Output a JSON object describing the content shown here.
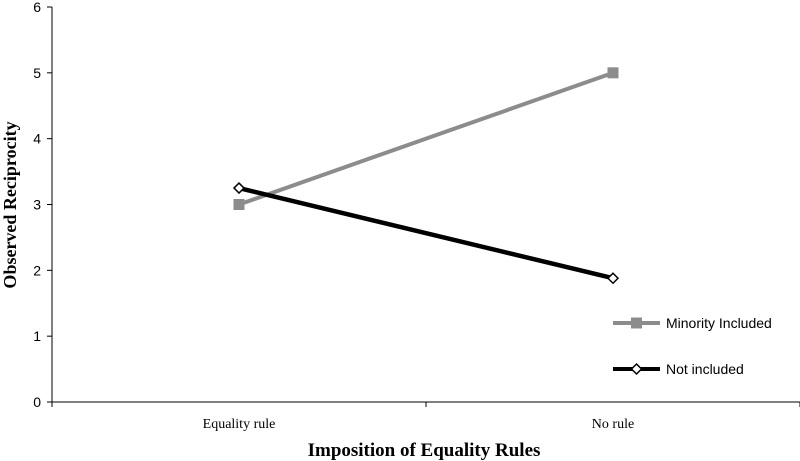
{
  "chart_data": {
    "type": "line",
    "categories": [
      "Equality rule",
      "No rule"
    ],
    "series": [
      {
        "name": "Minority Included",
        "values": [
          3.0,
          5.0
        ],
        "color": "#8c8c8c",
        "marker": "square"
      },
      {
        "name": "Not included",
        "values": [
          3.25,
          1.88
        ],
        "color": "#000000",
        "marker": "diamond"
      }
    ],
    "title": "",
    "xlabel": "Imposition of Equality Rules",
    "ylabel": "Observed Reciprocity",
    "ylim": [
      0,
      6
    ],
    "yticks": [
      "0",
      "1",
      "2",
      "3",
      "4",
      "5",
      "6"
    ],
    "grid": false,
    "legend_position": "bottom-right"
  }
}
